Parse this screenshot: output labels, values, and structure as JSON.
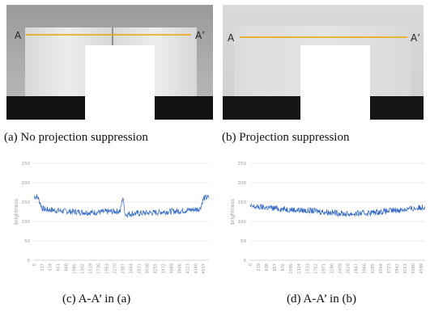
{
  "figures": [
    {
      "id": "a",
      "line_label_left": "A",
      "line_label_right": "A’",
      "caption": "(a) No projection suppression"
    },
    {
      "id": "b",
      "line_label_left": "A",
      "line_label_right": "A’",
      "caption": "(b) Projection suppression"
    }
  ],
  "colors": {
    "scan_line": "#f0a400",
    "series": "#2f66c4",
    "grid": "#e2e2e2",
    "axis_text": "#9a9a9a"
  },
  "chart_data": [
    {
      "type": "line",
      "caption": "(c) A-A’ in (a)",
      "ylabel": "brightness",
      "xlabel": "",
      "ylim": [
        0,
        250
      ],
      "yticks": [
        0,
        50,
        100,
        150,
        200,
        250
      ],
      "xticks": [
        0,
        217,
        434,
        651,
        868,
        1085,
        1302,
        1519,
        1736,
        1953,
        2170,
        2387,
        2604,
        2821,
        3038,
        3255,
        3472,
        3689,
        3906,
        4123,
        4340,
        4557
      ],
      "grid": true,
      "series": [
        {
          "x": [
            0,
            100,
            217,
            300,
            434,
            651,
            868,
            1085,
            1302,
            1519,
            1736,
            1953,
            2170,
            2320,
            2387,
            2450,
            2604,
            2821,
            3038,
            3255,
            3472,
            3689,
            3906,
            4123,
            4340,
            4460,
            4557,
            4700
          ],
          "values": [
            165,
            163,
            134,
            131,
            130,
            128,
            126,
            125,
            124,
            123,
            124,
            125,
            126,
            127,
            165,
            118,
            120,
            121,
            122,
            123,
            125,
            126,
            127,
            129,
            131,
            133,
            160,
            162
          ]
        }
      ]
    },
    {
      "type": "line",
      "caption": "(d) A-A’ in (b)",
      "ylabel": "brightness",
      "xlabel": "",
      "ylim": [
        0,
        250
      ],
      "yticks": [
        0,
        50,
        100,
        150,
        200,
        250
      ],
      "xticks": [
        0,
        219,
        438,
        657,
        876,
        1095,
        1314,
        1533,
        1752,
        1971,
        2190,
        2409,
        2628,
        2847,
        3066,
        3285,
        3504,
        3723,
        3942,
        4161,
        4380,
        4599
      ],
      "grid": true,
      "series": [
        {
          "x": [
            0,
            219,
            438,
            657,
            876,
            1095,
            1314,
            1533,
            1752,
            1971,
            2190,
            2409,
            2628,
            2847,
            3066,
            3285,
            3504,
            3723,
            3942,
            4161,
            4380,
            4599,
            4700
          ],
          "values": [
            138,
            137,
            136,
            134,
            132,
            131,
            129,
            128,
            127,
            125,
            123,
            121,
            119,
            120,
            121,
            123,
            125,
            127,
            129,
            131,
            133,
            136,
            139
          ]
        }
      ]
    }
  ]
}
